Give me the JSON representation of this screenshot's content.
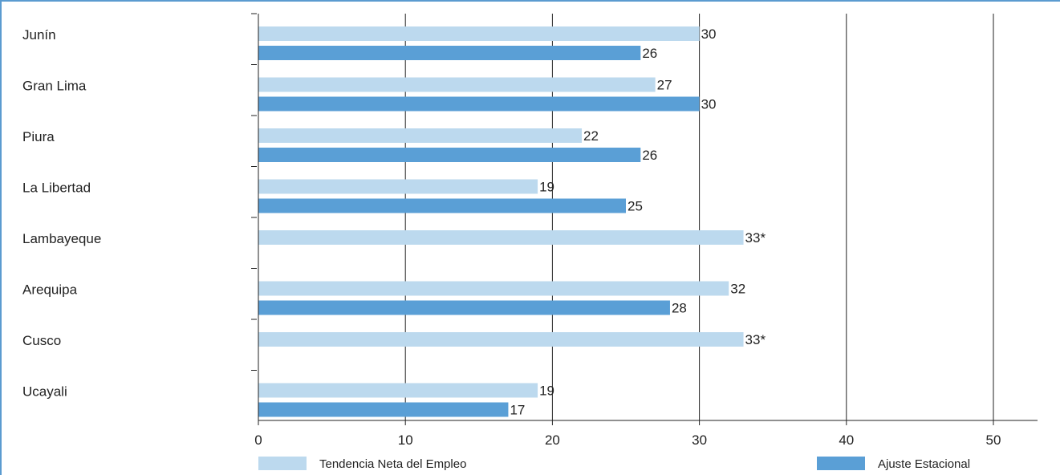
{
  "chart_data": {
    "type": "bar",
    "orientation": "horizontal",
    "categories": [
      "Junín",
      "Gran Lima",
      "Piura",
      "La Libertad",
      "Lambayeque",
      "Arequipa",
      "Cusco",
      "Ucayali"
    ],
    "series": [
      {
        "name": "Tendencia Neta del Empleo",
        "color": "#bcd9ee",
        "values": [
          30,
          27,
          22,
          19,
          33,
          32,
          33,
          19
        ],
        "labels": [
          "30",
          "27",
          "22",
          "19",
          "33*",
          "32",
          "33*",
          "19"
        ]
      },
      {
        "name": "Ajuste Estacional",
        "color": "#5a9fd6",
        "values": [
          26,
          30,
          26,
          25,
          null,
          28,
          null,
          17
        ],
        "labels": [
          "26",
          "30",
          "26",
          "25",
          "",
          "28",
          "",
          "17"
        ]
      }
    ],
    "xlim": [
      0,
      50
    ],
    "xticks": [
      0,
      10,
      20,
      30,
      40,
      50
    ],
    "grid": "vertical",
    "legend_position": "bottom"
  }
}
